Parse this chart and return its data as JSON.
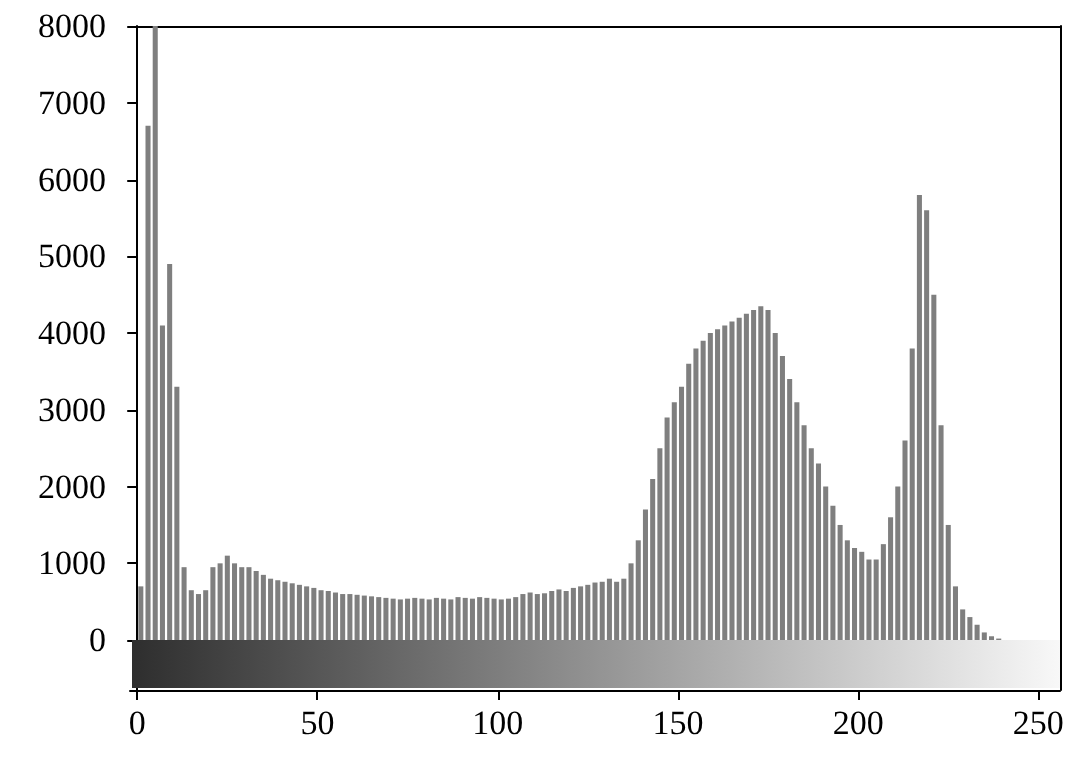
{
  "chart_data": {
    "type": "histogram",
    "color": "#7f7f7f",
    "bins": [
      0,
      2,
      4,
      6,
      8,
      10,
      12,
      14,
      16,
      18,
      20,
      22,
      24,
      26,
      28,
      30,
      32,
      34,
      36,
      38,
      40,
      42,
      44,
      46,
      48,
      50,
      52,
      54,
      56,
      58,
      60,
      62,
      64,
      66,
      68,
      70,
      72,
      74,
      76,
      78,
      80,
      82,
      84,
      86,
      88,
      90,
      92,
      94,
      96,
      98,
      100,
      102,
      104,
      106,
      108,
      110,
      112,
      114,
      116,
      118,
      120,
      122,
      124,
      126,
      128,
      130,
      132,
      134,
      136,
      138,
      140,
      142,
      144,
      146,
      148,
      150,
      152,
      154,
      156,
      158,
      160,
      162,
      164,
      166,
      168,
      170,
      172,
      174,
      176,
      178,
      180,
      182,
      184,
      186,
      188,
      190,
      192,
      194,
      196,
      198,
      200,
      202,
      204,
      206,
      208,
      210,
      212,
      214,
      216,
      218,
      220,
      222,
      224,
      226,
      228,
      230,
      232,
      234,
      236,
      238,
      240,
      242,
      244,
      246,
      248,
      250,
      252,
      254,
      256
    ],
    "values": [
      700,
      6700,
      8000,
      4100,
      4900,
      3300,
      950,
      650,
      600,
      650,
      950,
      1000,
      1100,
      1000,
      950,
      950,
      900,
      850,
      800,
      780,
      760,
      740,
      720,
      700,
      680,
      650,
      640,
      620,
      600,
      600,
      590,
      580,
      570,
      560,
      550,
      540,
      530,
      540,
      550,
      540,
      530,
      550,
      540,
      530,
      560,
      550,
      540,
      560,
      550,
      540,
      530,
      540,
      560,
      600,
      620,
      600,
      610,
      640,
      660,
      640,
      680,
      700,
      720,
      750,
      760,
      800,
      760,
      800,
      1000,
      1300,
      1700,
      2100,
      2500,
      2900,
      3100,
      3300,
      3600,
      3800,
      3900,
      4000,
      4050,
      4100,
      4150,
      4200,
      4250,
      4300,
      4350,
      4300,
      4000,
      3700,
      3400,
      3100,
      2800,
      2500,
      2300,
      2000,
      1750,
      1500,
      1300,
      1200,
      1150,
      1050,
      1050,
      1250,
      1600,
      2000,
      2600,
      3800,
      5800,
      5600,
      4500,
      2800,
      1500,
      700,
      400,
      300,
      200,
      100,
      50,
      20,
      0,
      0,
      0,
      0,
      0,
      0,
      0,
      0
    ],
    "xlim": [
      -2,
      256
    ],
    "xticks": [
      0,
      50,
      100,
      150,
      200,
      250
    ],
    "ylim": [
      -650,
      8000
    ],
    "yticks": [
      0,
      1000,
      2000,
      3000,
      4000,
      5000,
      6000,
      7000,
      8000
    ],
    "grid": false
  }
}
